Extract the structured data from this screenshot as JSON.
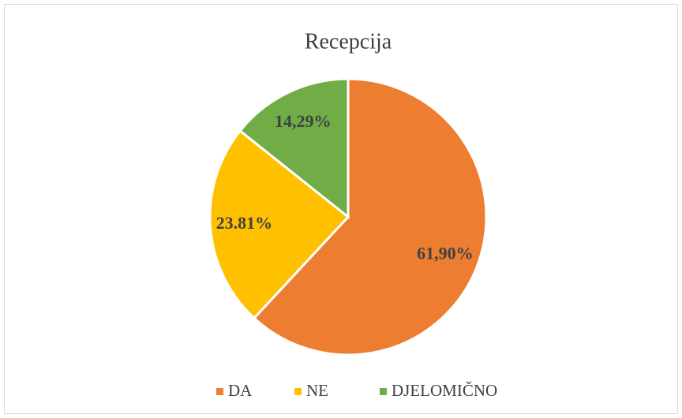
{
  "chart_data": {
    "type": "pie",
    "title": "Recepcija",
    "categories": [
      "DA",
      "NE",
      "DJELOMIČNO"
    ],
    "values": [
      61.9,
      23.81,
      14.29
    ],
    "value_labels": [
      "61,90%",
      "23.81%",
      "14,29%"
    ],
    "colors": [
      "#ed7d31",
      "#ffc000",
      "#70ad47"
    ],
    "legend": "bottom"
  }
}
